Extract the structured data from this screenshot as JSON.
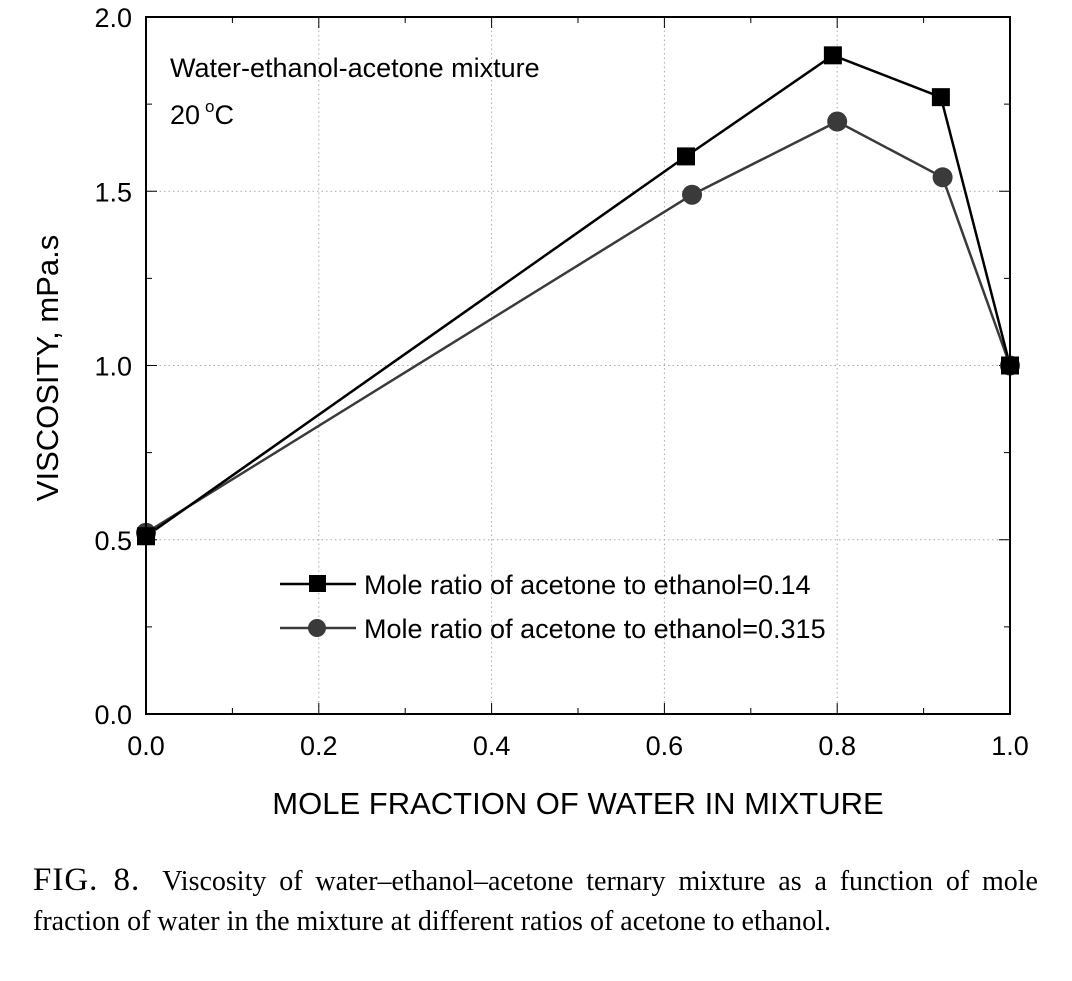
{
  "chart_data": {
    "type": "line",
    "xlabel": "MOLE FRACTION OF WATER IN MIXTURE",
    "ylabel": "VISCOSITY, mPa.s",
    "xlim": [
      0.0,
      1.0
    ],
    "ylim": [
      0.0,
      2.0
    ],
    "xticks": [
      "0.0",
      "0.2",
      "0.4",
      "0.6",
      "0.8",
      "1.0"
    ],
    "yticks": [
      "0.0",
      "0.5",
      "1.0",
      "1.5",
      "2.0"
    ],
    "grid": true,
    "legend_position": "bottom-center",
    "annotations": [
      "Water-ethanol-acetone mixture",
      "20",
      "o",
      "C"
    ],
    "series": [
      {
        "name": "Mole ratio of acetone to ethanol=0.14",
        "marker": "square",
        "color": "#000000",
        "x": [
          0.0,
          0.625,
          0.795,
          0.92,
          1.0
        ],
        "y": [
          0.51,
          1.6,
          1.89,
          1.77,
          1.0
        ]
      },
      {
        "name": "Mole ratio of acetone to ethanol=0.315",
        "marker": "circle",
        "color": "#3a3a3a",
        "x": [
          0.0,
          0.632,
          0.8,
          0.922,
          1.0
        ],
        "y": [
          0.52,
          1.49,
          1.7,
          1.54,
          1.0
        ]
      }
    ]
  },
  "caption": {
    "label": "FIG. 8.",
    "text": "Viscosity of water–ethanol–acetone ternary mixture as a function of mole fraction of water in the mixture at different ratios of acetone to ethanol."
  }
}
